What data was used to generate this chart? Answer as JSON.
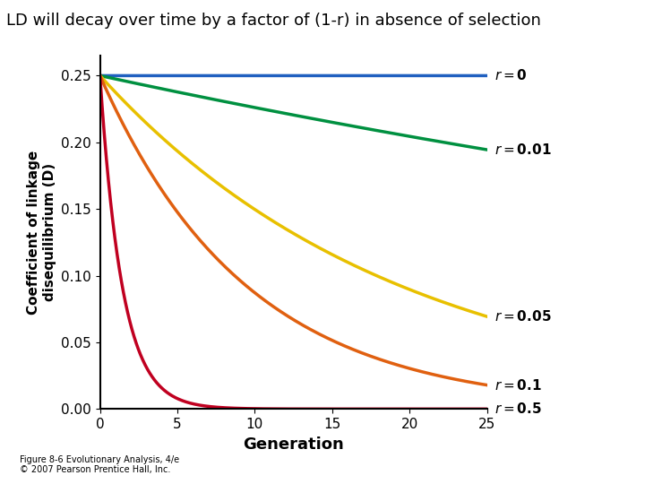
{
  "title": "LD will decay over time by a factor of (1-r) in absence of selection",
  "xlabel": "Generation",
  "ylabel": "Coefficient of linkage\ndisequilibrium (D)",
  "D0": 0.25,
  "r_values": [
    0,
    0.01,
    0.05,
    0.1,
    0.5
  ],
  "r_labels": [
    "$r=\\mathbf{0}$",
    "$r=\\mathbf{0.01}$",
    "$r=\\mathbf{0.05}$",
    "$r=\\mathbf{0.1}$",
    "$r=\\mathbf{0.5}$"
  ],
  "colors": [
    "#2060c0",
    "#009040",
    "#e8c000",
    "#e06010",
    "#c00020"
  ],
  "x_max": 25,
  "ylim": [
    0,
    0.265
  ],
  "xlim": [
    0,
    25
  ],
  "caption": "Figure 8-6 Evolutionary Analysis, 4/e\n© 2007 Pearson Prentice Hall, Inc.",
  "background_color": "#ffffff",
  "lw": 2.5,
  "title_fontsize": 13,
  "label_fontsize": 11,
  "axis_label_fontsize": 13,
  "tick_fontsize": 11,
  "caption_fontsize": 7
}
